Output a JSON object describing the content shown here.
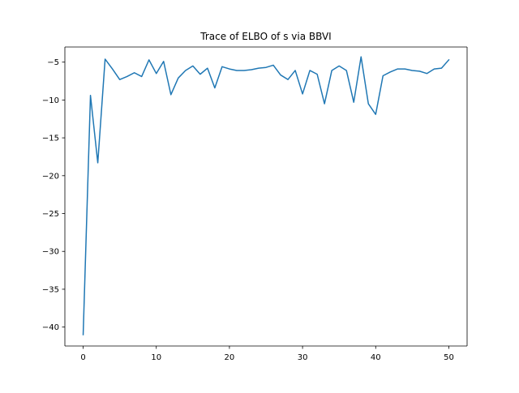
{
  "chart_data": {
    "type": "line",
    "title": "Trace of ELBO of s via BBVI",
    "xlabel": "",
    "ylabel": "",
    "xlim": [
      -2.5,
      52.5
    ],
    "ylim": [
      -42.5,
      -3.0
    ],
    "xticks": [
      0,
      10,
      20,
      30,
      40,
      50
    ],
    "yticks": [
      -40,
      -35,
      -30,
      -25,
      -20,
      -15,
      -10,
      -5
    ],
    "xtick_labels": [
      "0",
      "10",
      "20",
      "30",
      "40",
      "50"
    ],
    "ytick_labels": [
      "−40",
      "−35",
      "−30",
      "−25",
      "−20",
      "−15",
      "−10",
      "−5"
    ],
    "grid": false,
    "legend": "none",
    "series": [
      {
        "color": "#1f77b4",
        "x": [
          0,
          1,
          2,
          3,
          4,
          5,
          6,
          7,
          8,
          9,
          10,
          11,
          12,
          13,
          14,
          15,
          16,
          17,
          18,
          19,
          20,
          21,
          22,
          23,
          24,
          25,
          26,
          27,
          28,
          29,
          30,
          31,
          32,
          33,
          34,
          35,
          36,
          37,
          38,
          39,
          40,
          41,
          42,
          43,
          44,
          45,
          46,
          47,
          48,
          49,
          50
        ],
        "y": [
          -41.0,
          -9.4,
          -18.3,
          -4.6,
          -5.9,
          -7.3,
          -6.9,
          -6.4,
          -6.9,
          -4.7,
          -6.5,
          -4.9,
          -9.3,
          -7.1,
          -6.1,
          -5.5,
          -6.6,
          -5.8,
          -8.4,
          -5.6,
          -5.9,
          -6.1,
          -6.1,
          -6.0,
          -5.8,
          -5.7,
          -5.4,
          -6.7,
          -7.3,
          -6.1,
          -9.2,
          -6.1,
          -6.6,
          -10.5,
          -6.1,
          -5.5,
          -6.1,
          -10.3,
          -4.3,
          -10.5,
          -11.9,
          -6.8,
          -6.3,
          -5.9,
          -5.9,
          -6.1,
          -6.2,
          -6.5,
          -5.9,
          -5.8,
          -4.7
        ]
      }
    ]
  }
}
